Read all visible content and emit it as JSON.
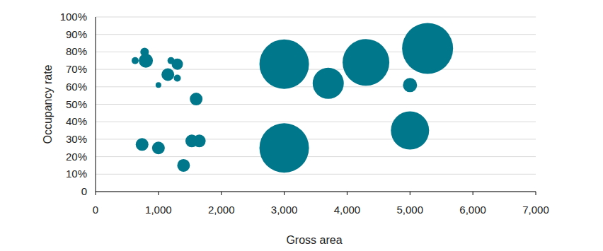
{
  "chart_data": {
    "type": "scatter",
    "x_label": "Gross area",
    "y_label": "Occupancy rate",
    "color": "#00778b",
    "grid": true,
    "x": [
      630,
      780,
      800,
      1000,
      1150,
      1200,
      1300,
      1300,
      1600,
      740,
      1000,
      1400,
      1530,
      1650,
      3000,
      3000,
      3700,
      4300,
      5000,
      5000,
      5280
    ],
    "values": [
      75,
      80,
      75,
      61,
      67,
      75,
      73,
      65,
      53,
      27,
      25,
      15,
      29,
      29,
      73,
      25,
      62,
      74,
      61,
      35,
      82
    ],
    "sizes": [
      25,
      36,
      100,
      16,
      81,
      25,
      64,
      25,
      81,
      81,
      81,
      81,
      81,
      81,
      1225,
      1225,
      484,
      1089,
      100,
      729,
      1296
    ],
    "xlim": [
      0,
      7000
    ],
    "xticks": [
      0,
      {
        "value": 1000,
        "label": "1,000"
      },
      {
        "value": 2000,
        "label": "2,000"
      },
      {
        "value": 3000,
        "label": "3,000"
      },
      {
        "value": 4000,
        "label": "4,000"
      },
      {
        "value": 5000,
        "label": "5,000"
      },
      {
        "value": 6000,
        "label": "6,000"
      },
      {
        "value": 7000,
        "label": "7,000"
      }
    ],
    "ylim": [
      0,
      100
    ],
    "yticks": [
      0,
      {
        "value": 10,
        "label": "10%"
      },
      {
        "value": 20,
        "label": "20%"
      },
      {
        "value": 30,
        "label": "30%"
      },
      {
        "value": 40,
        "label": "40%"
      },
      {
        "value": 50,
        "label": "50%"
      },
      {
        "value": 60,
        "label": "60%"
      },
      {
        "value": 70,
        "label": "70%"
      },
      {
        "value": 80,
        "label": "80%"
      },
      {
        "value": 90,
        "label": "90%"
      },
      {
        "value": 100,
        "label": "100%"
      }
    ]
  }
}
